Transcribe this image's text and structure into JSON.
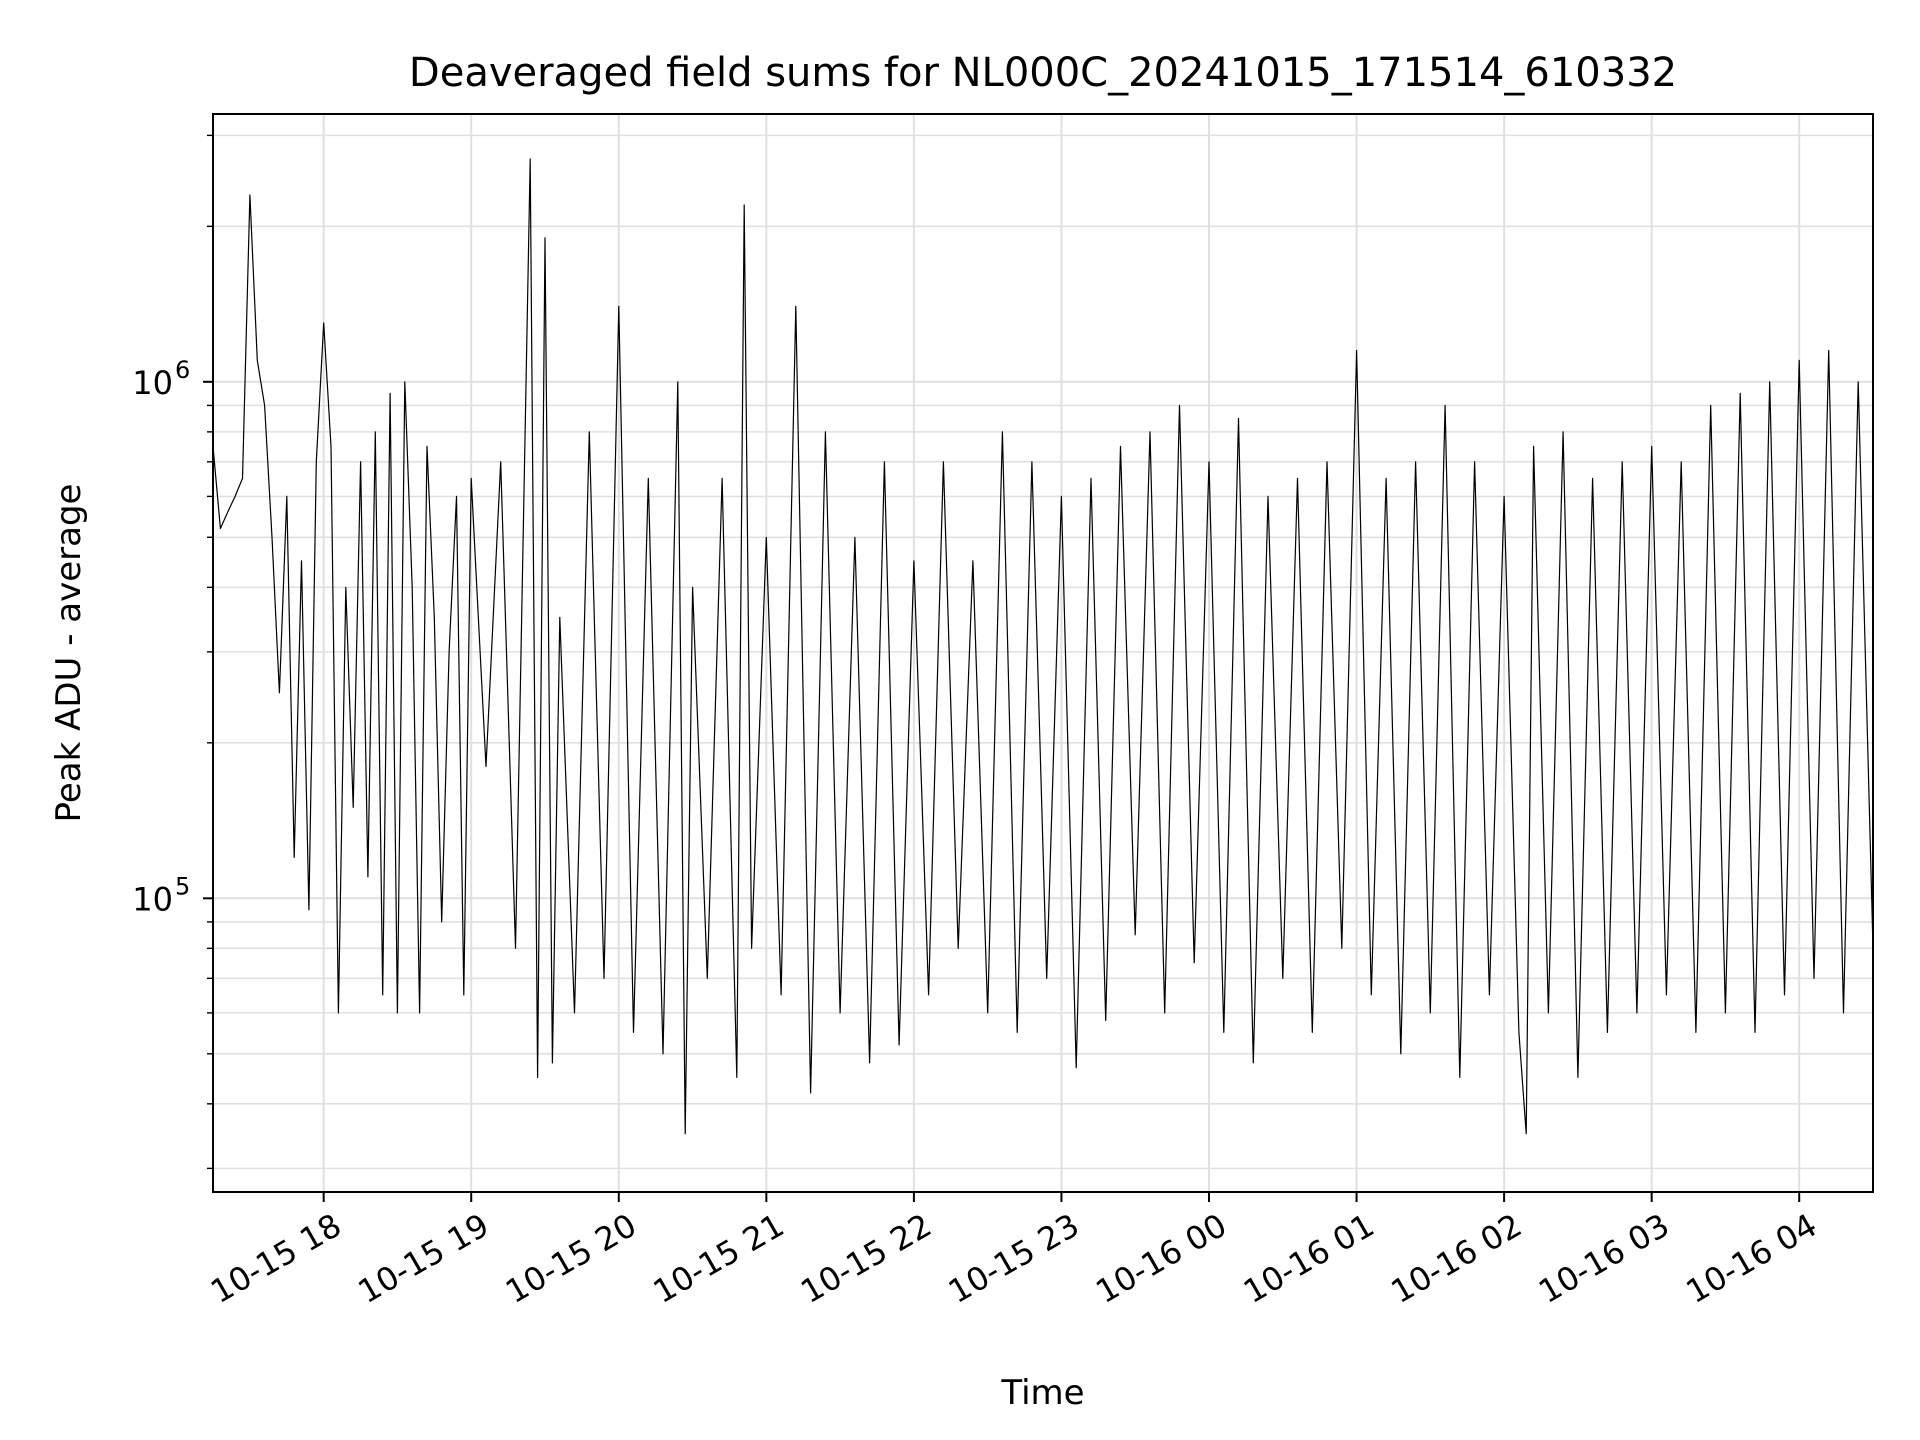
{
  "chart_data": {
    "type": "line",
    "title": "Deaveraged field sums for NL000C_20241015_171514_610332",
    "xlabel": "Time",
    "ylabel": "Peak ADU - average",
    "y_scale": "log",
    "ylim": [
      27000,
      3300000
    ],
    "xlim": [
      "2024-10-15 17:15",
      "2024-10-16 04:30"
    ],
    "grid": true,
    "line_color": "#000000",
    "grid_color": "#e0e0e0",
    "x_ticks": [
      {
        "value": "2024-10-15 18:00",
        "label": "10-15 18"
      },
      {
        "value": "2024-10-15 19:00",
        "label": "10-15 19"
      },
      {
        "value": "2024-10-15 20:00",
        "label": "10-15 20"
      },
      {
        "value": "2024-10-15 21:00",
        "label": "10-15 21"
      },
      {
        "value": "2024-10-15 22:00",
        "label": "10-15 22"
      },
      {
        "value": "2024-10-15 23:00",
        "label": "10-15 23"
      },
      {
        "value": "2024-10-16 00:00",
        "label": "10-16 00"
      },
      {
        "value": "2024-10-16 01:00",
        "label": "10-16 01"
      },
      {
        "value": "2024-10-16 02:00",
        "label": "10-16 02"
      },
      {
        "value": "2024-10-16 03:00",
        "label": "10-16 03"
      },
      {
        "value": "2024-10-16 04:00",
        "label": "10-16 04"
      }
    ],
    "y_ticks": [
      {
        "value": 100000,
        "base": "10",
        "exp": "5"
      },
      {
        "value": 1000000,
        "base": "10",
        "exp": "6"
      }
    ],
    "series": [
      {
        "x": [
          "2024-10-15 17:15",
          "2024-10-15 17:18",
          "2024-10-15 17:21",
          "2024-10-15 17:24",
          "2024-10-15 17:27",
          "2024-10-15 17:30",
          "2024-10-15 17:33",
          "2024-10-15 17:36",
          "2024-10-15 17:39",
          "2024-10-15 17:42",
          "2024-10-15 17:45",
          "2024-10-15 17:48",
          "2024-10-15 17:51",
          "2024-10-15 17:54",
          "2024-10-15 17:57",
          "2024-10-15 18:00",
          "2024-10-15 18:03",
          "2024-10-15 18:06",
          "2024-10-15 18:09",
          "2024-10-15 18:12",
          "2024-10-15 18:15",
          "2024-10-15 18:18",
          "2024-10-15 18:21",
          "2024-10-15 18:24",
          "2024-10-15 18:27",
          "2024-10-15 18:30",
          "2024-10-15 18:33",
          "2024-10-15 18:36",
          "2024-10-15 18:39",
          "2024-10-15 18:42",
          "2024-10-15 18:45",
          "2024-10-15 18:48",
          "2024-10-15 18:51",
          "2024-10-15 18:54",
          "2024-10-15 18:57",
          "2024-10-15 19:00",
          "2024-10-15 19:06",
          "2024-10-15 19:12",
          "2024-10-15 19:18",
          "2024-10-15 19:24",
          "2024-10-15 19:27",
          "2024-10-15 19:30",
          "2024-10-15 19:33",
          "2024-10-15 19:36",
          "2024-10-15 19:42",
          "2024-10-15 19:48",
          "2024-10-15 19:54",
          "2024-10-15 20:00",
          "2024-10-15 20:06",
          "2024-10-15 20:12",
          "2024-10-15 20:18",
          "2024-10-15 20:24",
          "2024-10-15 20:27",
          "2024-10-15 20:30",
          "2024-10-15 20:36",
          "2024-10-15 20:42",
          "2024-10-15 20:48",
          "2024-10-15 20:51",
          "2024-10-15 20:54",
          "2024-10-15 21:00",
          "2024-10-15 21:06",
          "2024-10-15 21:12",
          "2024-10-15 21:18",
          "2024-10-15 21:24",
          "2024-10-15 21:30",
          "2024-10-15 21:36",
          "2024-10-15 21:42",
          "2024-10-15 21:48",
          "2024-10-15 21:54",
          "2024-10-15 22:00",
          "2024-10-15 22:06",
          "2024-10-15 22:12",
          "2024-10-15 22:18",
          "2024-10-15 22:24",
          "2024-10-15 22:30",
          "2024-10-15 22:36",
          "2024-10-15 22:42",
          "2024-10-15 22:48",
          "2024-10-15 22:54",
          "2024-10-15 23:00",
          "2024-10-15 23:06",
          "2024-10-15 23:12",
          "2024-10-15 23:18",
          "2024-10-15 23:24",
          "2024-10-15 23:30",
          "2024-10-15 23:36",
          "2024-10-15 23:42",
          "2024-10-15 23:48",
          "2024-10-15 23:54",
          "2024-10-16 00:00",
          "2024-10-16 00:06",
          "2024-10-16 00:12",
          "2024-10-16 00:18",
          "2024-10-16 00:24",
          "2024-10-16 00:30",
          "2024-10-16 00:36",
          "2024-10-16 00:42",
          "2024-10-16 00:48",
          "2024-10-16 00:54",
          "2024-10-16 01:00",
          "2024-10-16 01:06",
          "2024-10-16 01:12",
          "2024-10-16 01:18",
          "2024-10-16 01:24",
          "2024-10-16 01:30",
          "2024-10-16 01:36",
          "2024-10-16 01:42",
          "2024-10-16 01:48",
          "2024-10-16 01:54",
          "2024-10-16 02:00",
          "2024-10-16 02:06",
          "2024-10-16 02:09",
          "2024-10-16 02:12",
          "2024-10-16 02:18",
          "2024-10-16 02:24",
          "2024-10-16 02:30",
          "2024-10-16 02:36",
          "2024-10-16 02:42",
          "2024-10-16 02:48",
          "2024-10-16 02:54",
          "2024-10-16 03:00",
          "2024-10-16 03:06",
          "2024-10-16 03:12",
          "2024-10-16 03:18",
          "2024-10-16 03:24",
          "2024-10-16 03:30",
          "2024-10-16 03:36",
          "2024-10-16 03:42",
          "2024-10-16 03:48",
          "2024-10-16 03:54",
          "2024-10-16 04:00",
          "2024-10-16 04:06",
          "2024-10-16 04:12",
          "2024-10-16 04:18",
          "2024-10-16 04:24",
          "2024-10-16 04:30"
        ],
        "y": [
          750000,
          520000,
          560000,
          600000,
          650000,
          2300000,
          1100000,
          900000,
          500000,
          250000,
          600000,
          120000,
          450000,
          95000,
          700000,
          1300000,
          750000,
          60000,
          400000,
          150000,
          700000,
          110000,
          800000,
          65000,
          950000,
          60000,
          1000000,
          400000,
          60000,
          750000,
          350000,
          90000,
          300000,
          600000,
          65000,
          650000,
          180000,
          700000,
          80000,
          2700000,
          45000,
          1900000,
          48000,
          350000,
          60000,
          800000,
          70000,
          1400000,
          55000,
          650000,
          50000,
          1000000,
          35000,
          400000,
          70000,
          650000,
          45000,
          2200000,
          80000,
          500000,
          65000,
          1400000,
          42000,
          800000,
          60000,
          500000,
          48000,
          700000,
          52000,
          450000,
          65000,
          700000,
          80000,
          450000,
          60000,
          800000,
          55000,
          700000,
          70000,
          600000,
          47000,
          650000,
          58000,
          750000,
          85000,
          800000,
          60000,
          900000,
          75000,
          700000,
          55000,
          850000,
          48000,
          600000,
          70000,
          650000,
          55000,
          700000,
          80000,
          1150000,
          65000,
          650000,
          50000,
          700000,
          60000,
          900000,
          45000,
          700000,
          65000,
          600000,
          55000,
          35000,
          750000,
          60000,
          800000,
          45000,
          650000,
          55000,
          700000,
          60000,
          750000,
          65000,
          700000,
          55000,
          900000,
          60000,
          950000,
          55000,
          1000000,
          65000,
          1100000,
          70000,
          1150000,
          60000,
          1000000,
          80000
        ],
        "color": "#000000"
      }
    ]
  }
}
